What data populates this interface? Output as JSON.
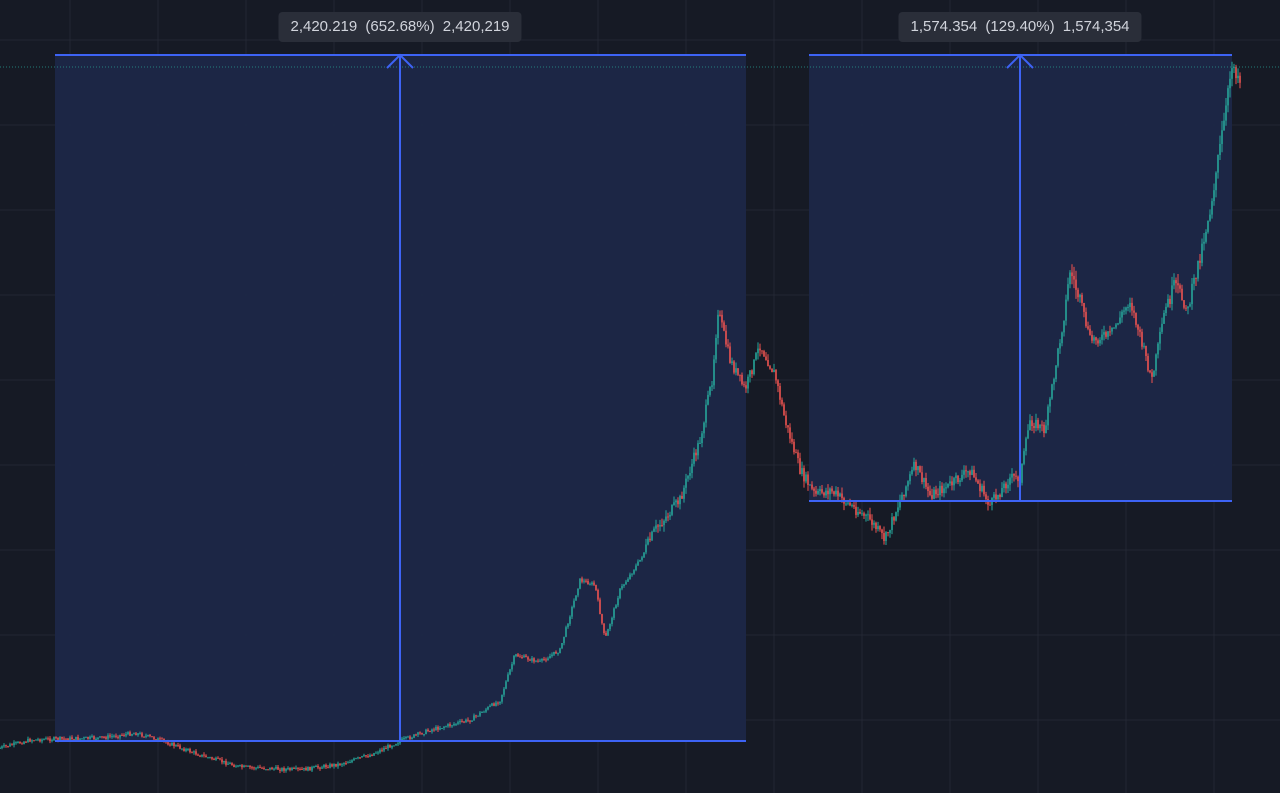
{
  "measures": [
    {
      "price_change": "2,420.219",
      "percent_change": "(652.68%)",
      "ticks_change": "2,420,219"
    },
    {
      "price_change": "1,574.354",
      "percent_change": "(129.40%)",
      "ticks_change": "1,574,354"
    }
  ],
  "colors": {
    "background": "#161a25",
    "grid": "#232733",
    "measure_fill": "#1c2747",
    "measure_line": "#3d63f5",
    "up": "#26a69a",
    "down": "#ef5350",
    "label_bg": "#2a2e39",
    "label_text": "#d1d4dc"
  }
}
